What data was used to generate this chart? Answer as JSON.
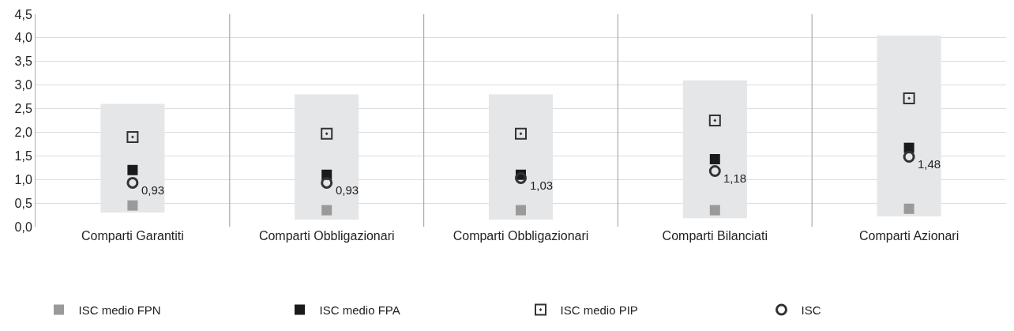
{
  "chart_data": {
    "type": "bar",
    "categories": [
      "Comparti Garantiti",
      "Comparti Obbligazionari",
      "Comparti Obbligazionari",
      "Comparti Bilanciati",
      "Comparti Azionari"
    ],
    "series": [
      {
        "color": "#e5e6e8",
        "base": [
          0.3,
          0.15,
          0.15,
          0.18,
          0.22
        ],
        "values": [
          2.3,
          2.65,
          2.65,
          2.92,
          3.83
        ]
      },
      {
        "type": "scatter",
        "name": "ISC medio FPN",
        "color": "#9a9a9a",
        "marker": "square",
        "values": [
          0.45,
          0.35,
          0.35,
          0.35,
          0.38
        ]
      },
      {
        "type": "scatter",
        "name": "ISC medio FPA",
        "color": "#1a1a1a",
        "marker": "square",
        "values": [
          1.2,
          1.1,
          1.1,
          1.43,
          1.67
        ]
      },
      {
        "type": "scatter",
        "name": "ISC medio PIP",
        "color": "#333333",
        "marker": "square",
        "line_style": "dotted",
        "values": [
          1.9,
          1.97,
          1.97,
          2.25,
          2.72
        ]
      },
      {
        "type": "scatter",
        "name": "ISC",
        "color": "#333333",
        "marker": "circle",
        "values": [
          0.93,
          0.93,
          1.03,
          1.18,
          1.48
        ],
        "value_labels": [
          "0,93",
          "0,93",
          "1,03",
          "1,18",
          "1,48"
        ]
      }
    ],
    "ylim": [
      0,
      4.5
    ],
    "yticks": [
      {
        "value": 0,
        "label": "0,0"
      },
      {
        "value": 0.5,
        "label": "0,5"
      },
      {
        "value": 1,
        "label": "1,0"
      },
      {
        "value": 1.5,
        "label": "1,5"
      },
      {
        "value": 2,
        "label": "2,0"
      },
      {
        "value": 2.5,
        "label": "2,5"
      },
      {
        "value": 3,
        "label": "3,0"
      },
      {
        "value": 3.5,
        "label": "3,5"
      },
      {
        "value": 4,
        "label": "4,0"
      },
      {
        "value": 4.5,
        "label": "4,5"
      }
    ],
    "grid": "y",
    "legend": "bottom"
  }
}
